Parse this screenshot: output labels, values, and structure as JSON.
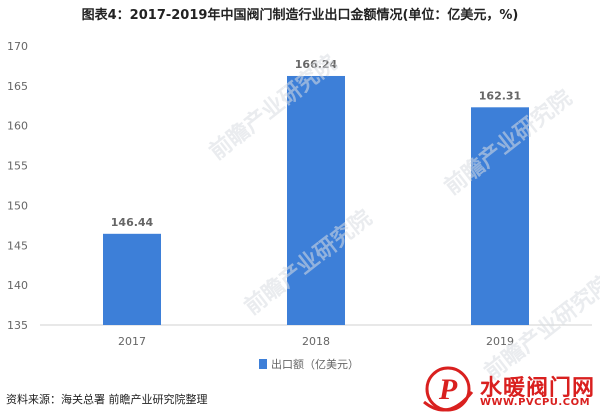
{
  "title": "图表4：2017-2019年中国阀门制造行业出口金额情况(单位：亿美元，%)",
  "source": "资料来源：海关总署 前瞻产业研究院整理",
  "watermark": "前瞻产业研究院",
  "logo": {
    "name": "水暖阀门网",
    "url": "WWW.PVCPU.COM",
    "letter": "P"
  },
  "colors": {
    "bar": "#3d7fd8",
    "label": "#666666",
    "axis": "#d0d0d0",
    "logo_red": "#d9201f"
  },
  "chart_data": {
    "type": "bar",
    "categories": [
      "2017",
      "2018",
      "2019"
    ],
    "series": [
      {
        "name": "出口额（亿美元）",
        "values": [
          146.44,
          166.24,
          162.31
        ]
      }
    ],
    "data_labels": [
      "146.44",
      "166.24",
      "162.31"
    ],
    "ylim": [
      135,
      170
    ],
    "yticks": [
      135,
      140,
      145,
      150,
      155,
      160,
      165,
      170
    ],
    "grid": false,
    "legend": "bottom-center"
  }
}
